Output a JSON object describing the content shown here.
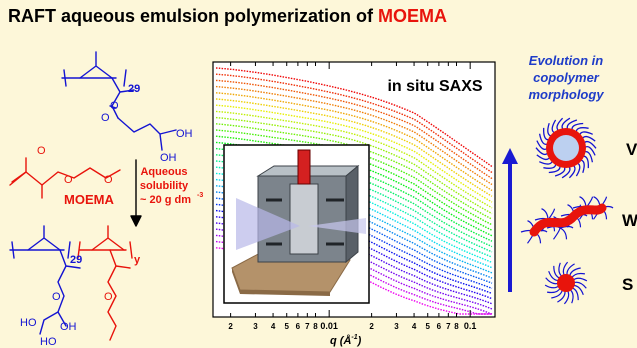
{
  "title": {
    "prefix": "RAFT aqueous emulsion polymerization of ",
    "highlight": "MOEMA"
  },
  "chemistry": {
    "dp_first": "29",
    "dp_block": "29",
    "block_y": "y",
    "oh_top": "OH",
    "ho_label": "HO",
    "monomer_name": "MOEMA",
    "solubility_line1": "Aqueous",
    "solubility_line2": "solubility",
    "solubility_line3": "~ 20 g dm",
    "solubility_exp": "-3",
    "oxygen": "O"
  },
  "saxs": {
    "label": "in situ SAXS",
    "x_axis_label": "q (Å",
    "x_axis_exp": "-1",
    "x_axis_close": ")",
    "tick_labels": [
      "2",
      "3",
      "4",
      "5",
      "6",
      "7",
      "8",
      "0.01",
      "2",
      "3",
      "4",
      "5",
      "6",
      "7",
      "8",
      "0.1"
    ]
  },
  "morphology": {
    "heading": [
      "Evolution in",
      "copolymer",
      "morphology"
    ],
    "labels": [
      "V",
      "W",
      "S"
    ]
  },
  "colors": {
    "title": "#000000",
    "highlight": "#e8140c",
    "blue_polymer": "#1414d2",
    "red_monomer": "#e8140c",
    "background": "#fdf7d9",
    "heading": "#1e3cc8",
    "arrow": "#1a1ad2"
  }
}
